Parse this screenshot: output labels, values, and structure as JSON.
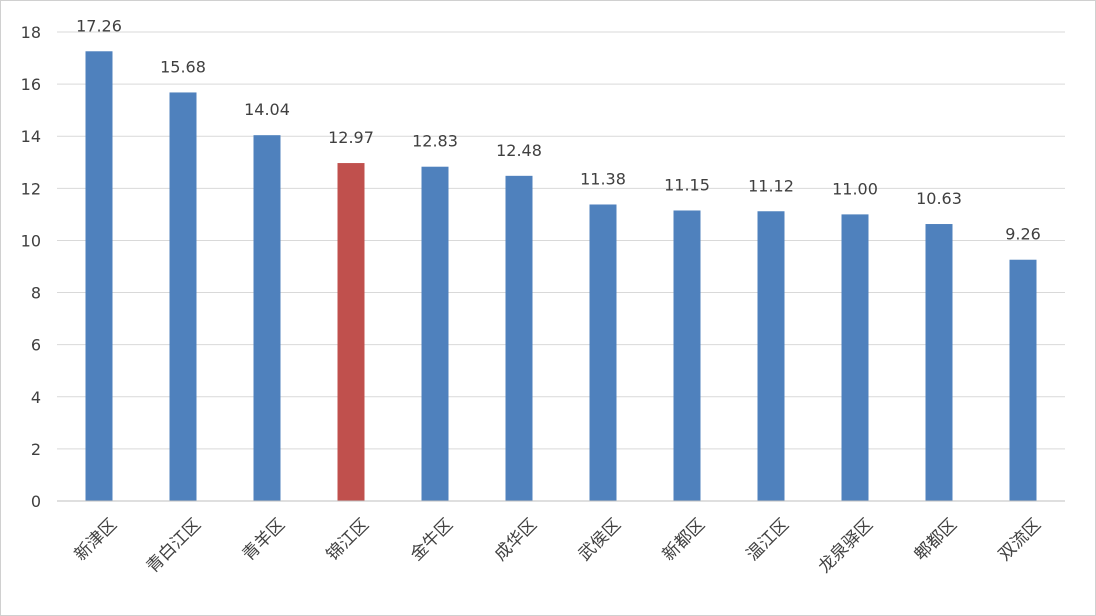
{
  "chart_data": {
    "type": "bar",
    "title": "",
    "xlabel": "",
    "ylabel": "",
    "ylim": [
      0,
      18
    ],
    "yticks": [
      0,
      2,
      4,
      6,
      8,
      10,
      12,
      14,
      16,
      18
    ],
    "grid": true,
    "legend": "none",
    "categories": [
      "新津区",
      "青白江区",
      "青羊区",
      "锦江区",
      "金牛区",
      "成华区",
      "武侯区",
      "新都区",
      "温江区",
      "龙泉驿区",
      "郫都区",
      "双流区"
    ],
    "values": [
      17.26,
      15.68,
      14.04,
      12.97,
      12.83,
      12.48,
      11.38,
      11.15,
      11.12,
      11.0,
      10.63,
      9.26
    ],
    "value_labels": [
      "17.26",
      "15.68",
      "14.04",
      "12.97",
      "12.83",
      "12.48",
      "11.38",
      "11.15",
      "11.12",
      "11.00",
      "10.63",
      "9.26"
    ],
    "highlight_category": "锦江区",
    "colors": {
      "bar": "#4f81bd",
      "highlight": "#c0504d",
      "grid": "#d9d9d9",
      "axis": "#bfbfbf",
      "text": "#404040"
    }
  }
}
